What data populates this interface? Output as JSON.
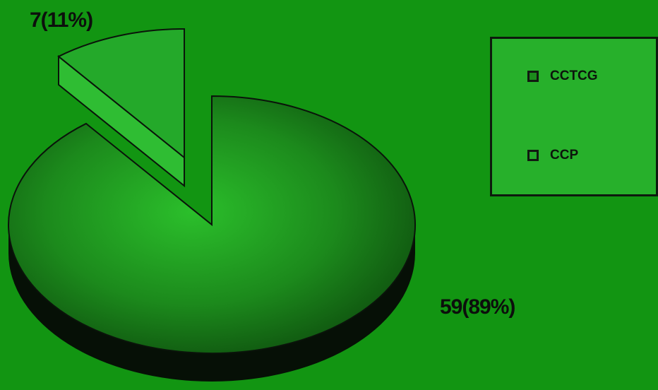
{
  "chart_data": {
    "type": "pie",
    "title": "",
    "slices": [
      {
        "name": "CCTCG",
        "value": 59,
        "percent": 89,
        "label": "59(89%)",
        "color": "#1c8a1c",
        "exploded": false
      },
      {
        "name": "CCP",
        "value": 7,
        "percent": 11,
        "label": "7(11%)",
        "color": "#24a92a",
        "exploded": true
      }
    ],
    "style": "3d",
    "legend": {
      "placement": "right",
      "items": [
        "CCTCG",
        "CCP"
      ]
    }
  },
  "colors": {
    "background": "#129512",
    "legend_fill": "#27b02b",
    "rim": "#061006",
    "text": "#0c0f0c"
  }
}
